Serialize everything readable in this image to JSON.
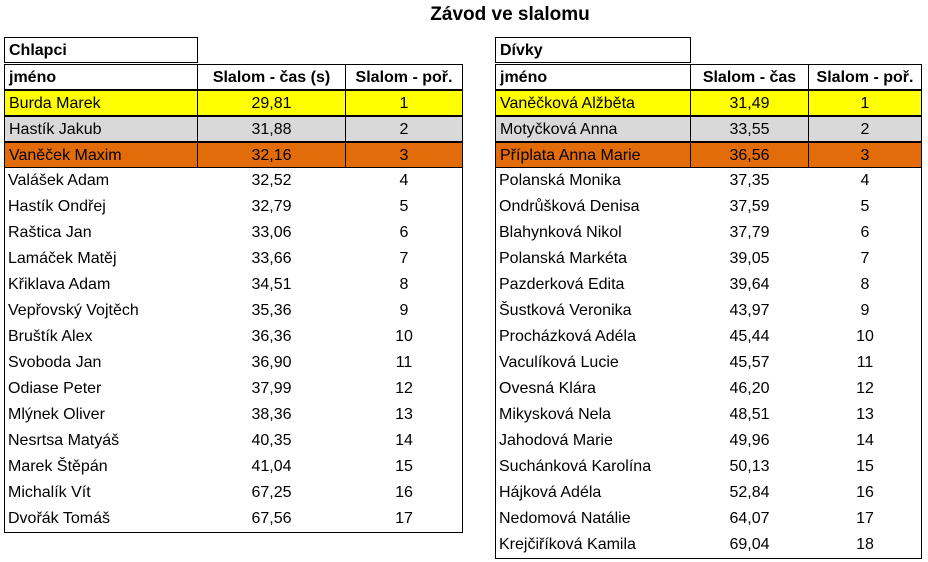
{
  "title": "Závod ve slalomu",
  "highlight_colors": [
    "#ffff00",
    "#d9d9d9",
    "#e26b0a"
  ],
  "left": {
    "caption": "Chlapci",
    "columns": [
      "jméno",
      "Slalom - čas (s)",
      "Slalom - poř."
    ],
    "rows": [
      [
        "Burda Marek",
        "29,81",
        1
      ],
      [
        "Hastík Jakub",
        "31,88",
        2
      ],
      [
        "Vaněček Maxim",
        "32,16",
        3
      ],
      [
        "Valášek Adam",
        "32,52",
        4
      ],
      [
        "Hastík Ondřej",
        "32,79",
        5
      ],
      [
        "Raštica Jan",
        "33,06",
        6
      ],
      [
        "Lamáček Matěj",
        "33,66",
        7
      ],
      [
        "Křiklava Adam",
        "34,51",
        8
      ],
      [
        "Vepřovský Vojtěch",
        "35,36",
        9
      ],
      [
        "Bruštík Alex",
        "36,36",
        10
      ],
      [
        "Svoboda Jan",
        "36,90",
        11
      ],
      [
        "Odiase Peter",
        "37,99",
        12
      ],
      [
        "Mlýnek Oliver",
        "38,36",
        13
      ],
      [
        "Nesrtsa Matyáš",
        "40,35",
        14
      ],
      [
        "Marek Štěpán",
        "41,04",
        15
      ],
      [
        "Michalík Vít",
        "67,25",
        16
      ],
      [
        "Dvořák Tomáš",
        "67,56",
        17
      ]
    ]
  },
  "right": {
    "caption": "Dívky",
    "columns": [
      "jméno",
      "Slalom - čas",
      "Slalom - poř."
    ],
    "rows": [
      [
        "Vaněčková Alžběta",
        "31,49",
        1
      ],
      [
        "Motyčková Anna",
        "33,55",
        2
      ],
      [
        "Příplata Anna Marie",
        "36,56",
        3
      ],
      [
        "Polanská Monika",
        "37,35",
        4
      ],
      [
        "Ondrůšková Denisa",
        "37,59",
        5
      ],
      [
        "Blahynková Nikol",
        "37,79",
        6
      ],
      [
        "Polanská Markéta",
        "39,05",
        7
      ],
      [
        "Pazderková Edita",
        "39,64",
        8
      ],
      [
        "Šustková Veronika",
        "43,97",
        9
      ],
      [
        "Procházková Adéla",
        "45,44",
        10
      ],
      [
        "Vaculíková Lucie",
        "45,57",
        11
      ],
      [
        "Ovesná Klára",
        "46,20",
        12
      ],
      [
        "Mikysková Nela",
        "48,51",
        13
      ],
      [
        "Jahodová Marie",
        "49,96",
        14
      ],
      [
        "Suchánková Karolína",
        "50,13",
        15
      ],
      [
        "Hájková Adéla",
        "52,84",
        16
      ],
      [
        "Nedomová Natálie",
        "64,07",
        17
      ],
      [
        "Krejčiříková Kamila",
        "69,04",
        18
      ]
    ]
  }
}
